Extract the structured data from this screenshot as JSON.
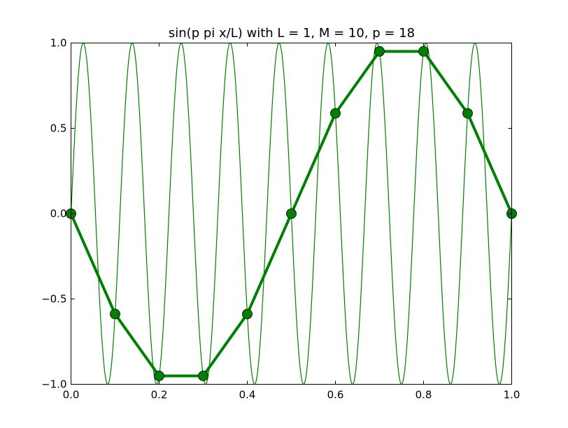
{
  "chart_data": {
    "type": "line",
    "title": "sin(p pi x/L) with L = 1, M = 10, p = 18",
    "xlabel": "",
    "ylabel": "",
    "xlim": [
      0.0,
      1.0
    ],
    "ylim": [
      -1.0,
      1.0
    ],
    "grid": false,
    "x_ticks": [
      {
        "value": 0.0,
        "label": "0.0"
      },
      {
        "value": 0.2,
        "label": "0.2"
      },
      {
        "value": 0.4,
        "label": "0.4"
      },
      {
        "value": 0.6,
        "label": "0.6"
      },
      {
        "value": 0.8,
        "label": "0.8"
      },
      {
        "value": 1.0,
        "label": "1.0"
      }
    ],
    "y_ticks": [
      {
        "value": -1.0,
        "label": "−1.0"
      },
      {
        "value": -0.5,
        "label": "−0.5"
      },
      {
        "value": 0.0,
        "label": "0.0"
      },
      {
        "value": 0.5,
        "label": "0.5"
      },
      {
        "value": 1.0,
        "label": "1.0"
      }
    ],
    "series": [
      {
        "kind": "function",
        "function": "sin(p*pi*x/L)",
        "p": 18,
        "L": 1,
        "x_range": [
          0.0,
          1.0
        ],
        "color": "#008000",
        "marker": "none"
      },
      {
        "kind": "sampled",
        "x": [
          0.0,
          0.1,
          0.2,
          0.3,
          0.4,
          0.5,
          0.6,
          0.7,
          0.8,
          0.9,
          1.0
        ],
        "y": [
          0.0,
          -0.588,
          -0.951,
          -0.951,
          -0.588,
          0.0,
          0.588,
          0.951,
          0.951,
          0.588,
          0.0
        ],
        "color": "#008000",
        "marker": "circle"
      }
    ]
  }
}
